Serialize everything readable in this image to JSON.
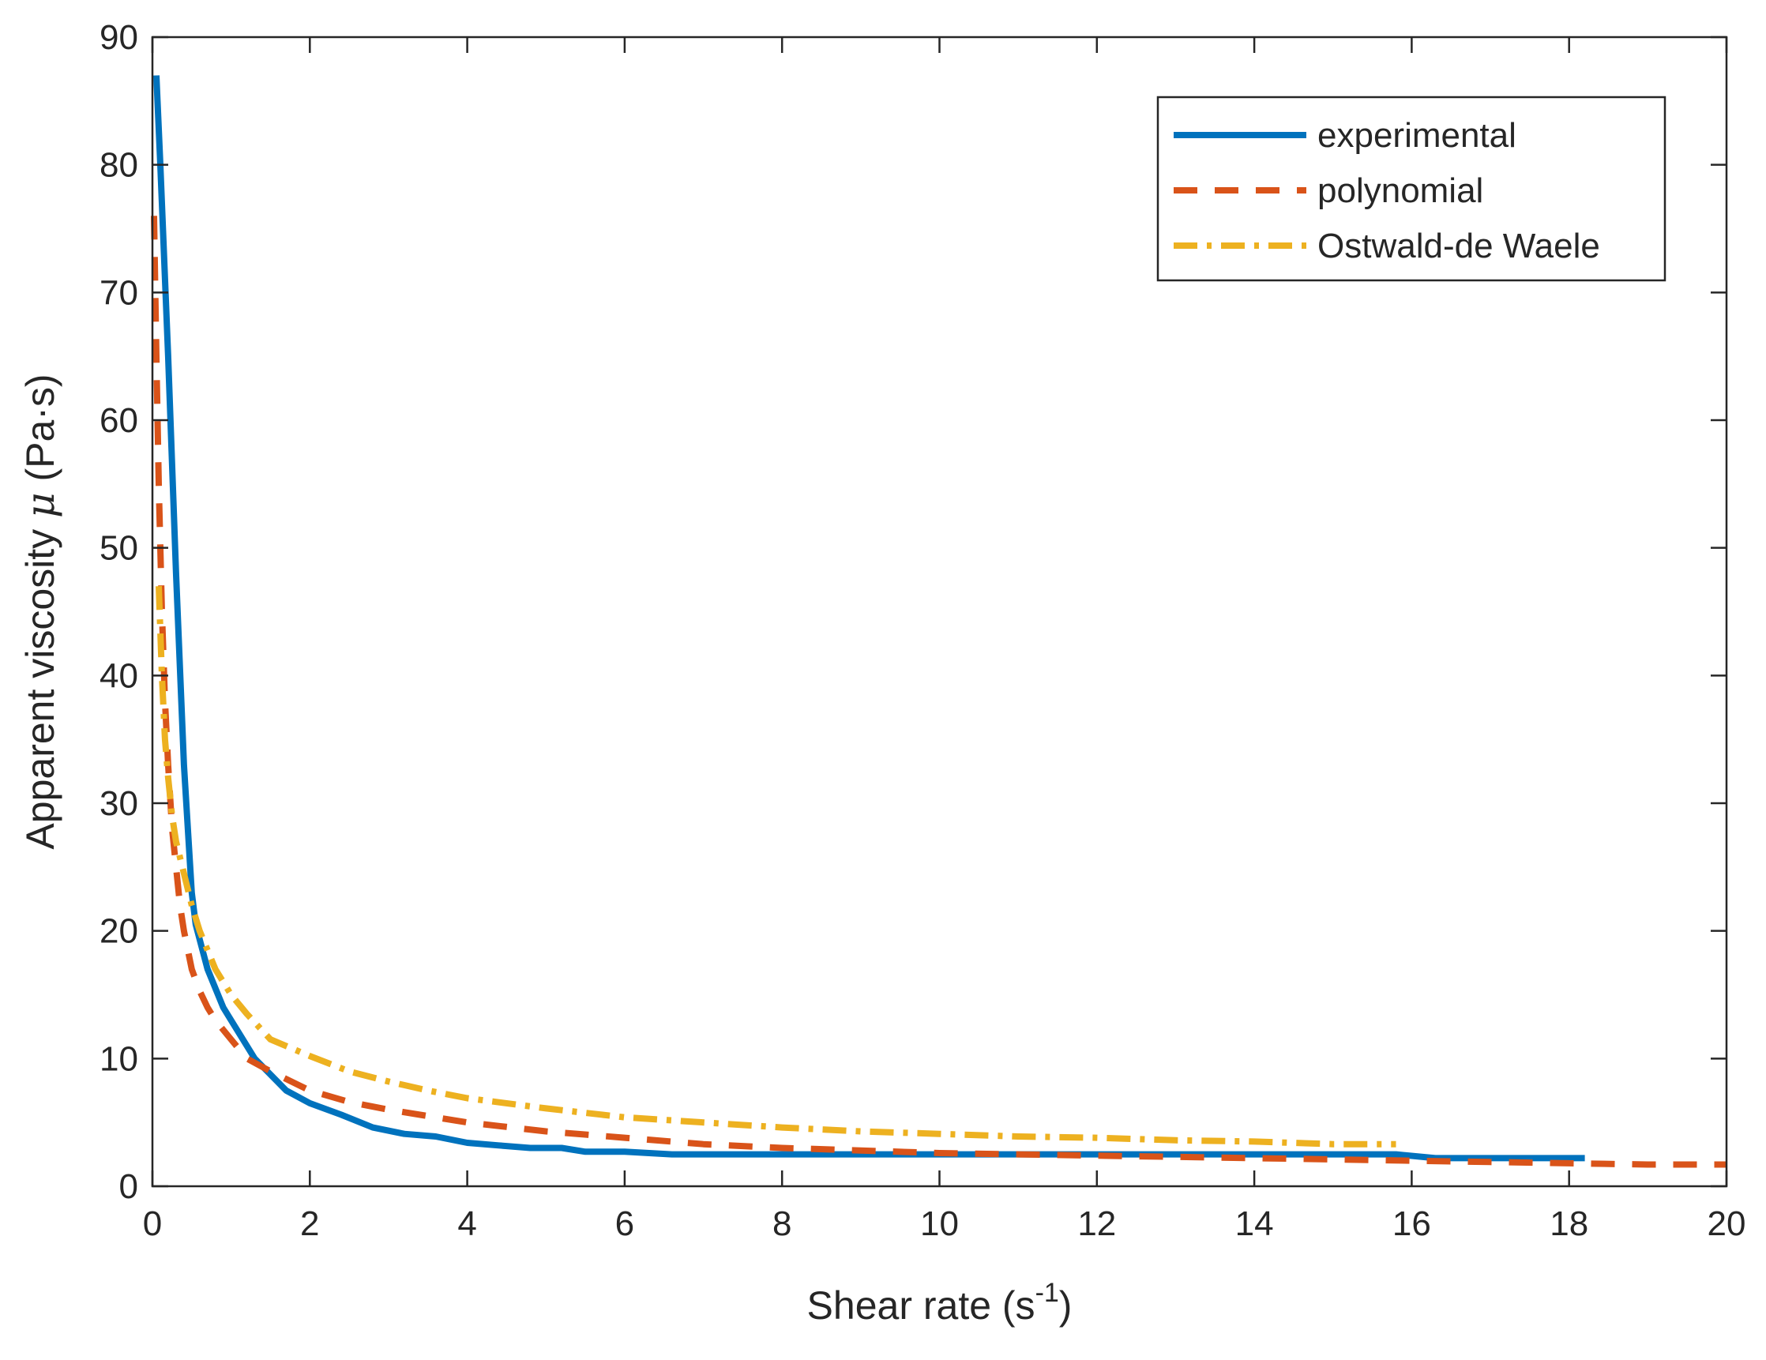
{
  "chart_data": {
    "type": "line",
    "title": "",
    "xlabel": "Shear rate (s",
    "xlabel_sup": "-1",
    "xlabel_tail": ")",
    "ylabel": "Apparent viscosity",
    "ylabel_symbol": "μ",
    "ylabel_unit": "(Pa·s)",
    "xlim": [
      0,
      20
    ],
    "ylim": [
      0,
      90
    ],
    "xticks": [
      0,
      2,
      4,
      6,
      8,
      10,
      12,
      14,
      16,
      18,
      20
    ],
    "yticks": [
      0,
      10,
      20,
      30,
      40,
      50,
      60,
      70,
      80,
      90
    ],
    "xtick_labels": [
      "0",
      "2",
      "4",
      "6",
      "8",
      "10",
      "12",
      "14",
      "16",
      "18",
      "20"
    ],
    "ytick_labels": [
      "0",
      "10",
      "20",
      "30",
      "40",
      "50",
      "60",
      "70",
      "80",
      "90"
    ],
    "grid": false,
    "legend_position": "top-right",
    "series": [
      {
        "name": "experimental",
        "color": "#0072BD",
        "style": "solid",
        "x": [
          0.05,
          0.1,
          0.2,
          0.3,
          0.4,
          0.5,
          0.55,
          0.7,
          0.9,
          1.0,
          1.3,
          1.7,
          2.0,
          2.4,
          2.8,
          3.2,
          3.6,
          4.0,
          4.4,
          4.8,
          5.2,
          5.5,
          6.0,
          6.6,
          7.0,
          8.0,
          9.0,
          10.0,
          11.0,
          12.0,
          13.0,
          14.0,
          15.0,
          15.8,
          16.3,
          17.0,
          18.2
        ],
        "y": [
          87,
          80,
          65,
          48,
          33,
          23,
          20.5,
          17,
          14,
          13,
          10,
          7.5,
          6.5,
          5.6,
          4.6,
          4.1,
          3.9,
          3.4,
          3.2,
          3.0,
          3.0,
          2.7,
          2.7,
          2.5,
          2.5,
          2.5,
          2.5,
          2.5,
          2.5,
          2.5,
          2.5,
          2.5,
          2.5,
          2.5,
          2.2,
          2.2,
          2.2
        ]
      },
      {
        "name": "polynomial",
        "color": "#D95319",
        "style": "dashed",
        "x": [
          0.02,
          0.05,
          0.08,
          0.12,
          0.16,
          0.2,
          0.25,
          0.3,
          0.35,
          0.4,
          0.5,
          0.6,
          0.7,
          0.8,
          1.0,
          1.2,
          1.5,
          2.0,
          2.5,
          3.0,
          3.5,
          4.0,
          5.0,
          6.0,
          7.0,
          8.0,
          9.0,
          10.0,
          11.0,
          12.0,
          13.0,
          14.0,
          15.0,
          16.0,
          17.0,
          18.0,
          19.0,
          20.0
        ],
        "y": [
          76,
          65,
          55,
          45,
          38,
          33,
          28,
          25,
          22,
          20,
          17,
          15.3,
          14,
          13,
          11.5,
          10,
          9,
          7.5,
          6.6,
          6.0,
          5.5,
          5.0,
          4.3,
          3.8,
          3.3,
          3.0,
          2.8,
          2.6,
          2.5,
          2.4,
          2.3,
          2.2,
          2.1,
          2.0,
          1.9,
          1.8,
          1.7,
          1.7
        ]
      },
      {
        "name": "Ostwald-de Waele",
        "color": "#EDB120",
        "style": "dashdot",
        "x": [
          0.08,
          0.12,
          0.16,
          0.2,
          0.25,
          0.3,
          0.4,
          0.5,
          0.6,
          0.8,
          1.0,
          1.2,
          1.5,
          2.0,
          2.5,
          3.0,
          3.5,
          4.0,
          5.0,
          6.0,
          7.0,
          8.0,
          9.0,
          10.0,
          11.0,
          12.0,
          13.0,
          14.0,
          15.0,
          15.8
        ],
        "y": [
          47,
          40,
          35,
          32,
          29,
          27,
          24.5,
          22,
          20,
          17,
          15,
          13.5,
          11.5,
          10.2,
          9.0,
          8.2,
          7.5,
          6.9,
          6.1,
          5.4,
          5.0,
          4.6,
          4.3,
          4.1,
          3.9,
          3.8,
          3.6,
          3.5,
          3.3,
          3.3
        ]
      }
    ]
  }
}
